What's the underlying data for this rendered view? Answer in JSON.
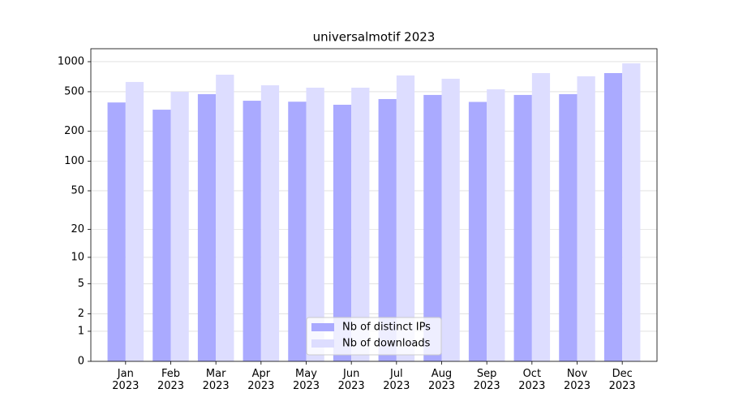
{
  "chart_data": {
    "type": "bar",
    "title": "universalmotif 2023",
    "categories": [
      "Jan\n2023",
      "Feb\n2023",
      "Mar\n2023",
      "Apr\n2023",
      "May\n2023",
      "Jun\n2023",
      "Jul\n2023",
      "Aug\n2023",
      "Sep\n2023",
      "Oct\n2023",
      "Nov\n2023",
      "Dec\n2023"
    ],
    "series": [
      {
        "name": "Nb of distinct IPs",
        "color": "#aaaaff",
        "values": [
          390,
          330,
          473,
          406,
          397,
          370,
          422,
          464,
          395,
          464,
          473,
          769
        ]
      },
      {
        "name": "Nb of downloads",
        "color": "#ddddff",
        "values": [
          626,
          500,
          741,
          580,
          549,
          549,
          728,
          675,
          529,
          769,
          714,
          963
        ]
      }
    ],
    "yscale": "symlog",
    "ylim": [
      0,
      1349
    ],
    "yticks": [
      0,
      1,
      2,
      5,
      10,
      20,
      50,
      100,
      200,
      500,
      1000
    ],
    "grid": true,
    "legend": "lower center"
  }
}
